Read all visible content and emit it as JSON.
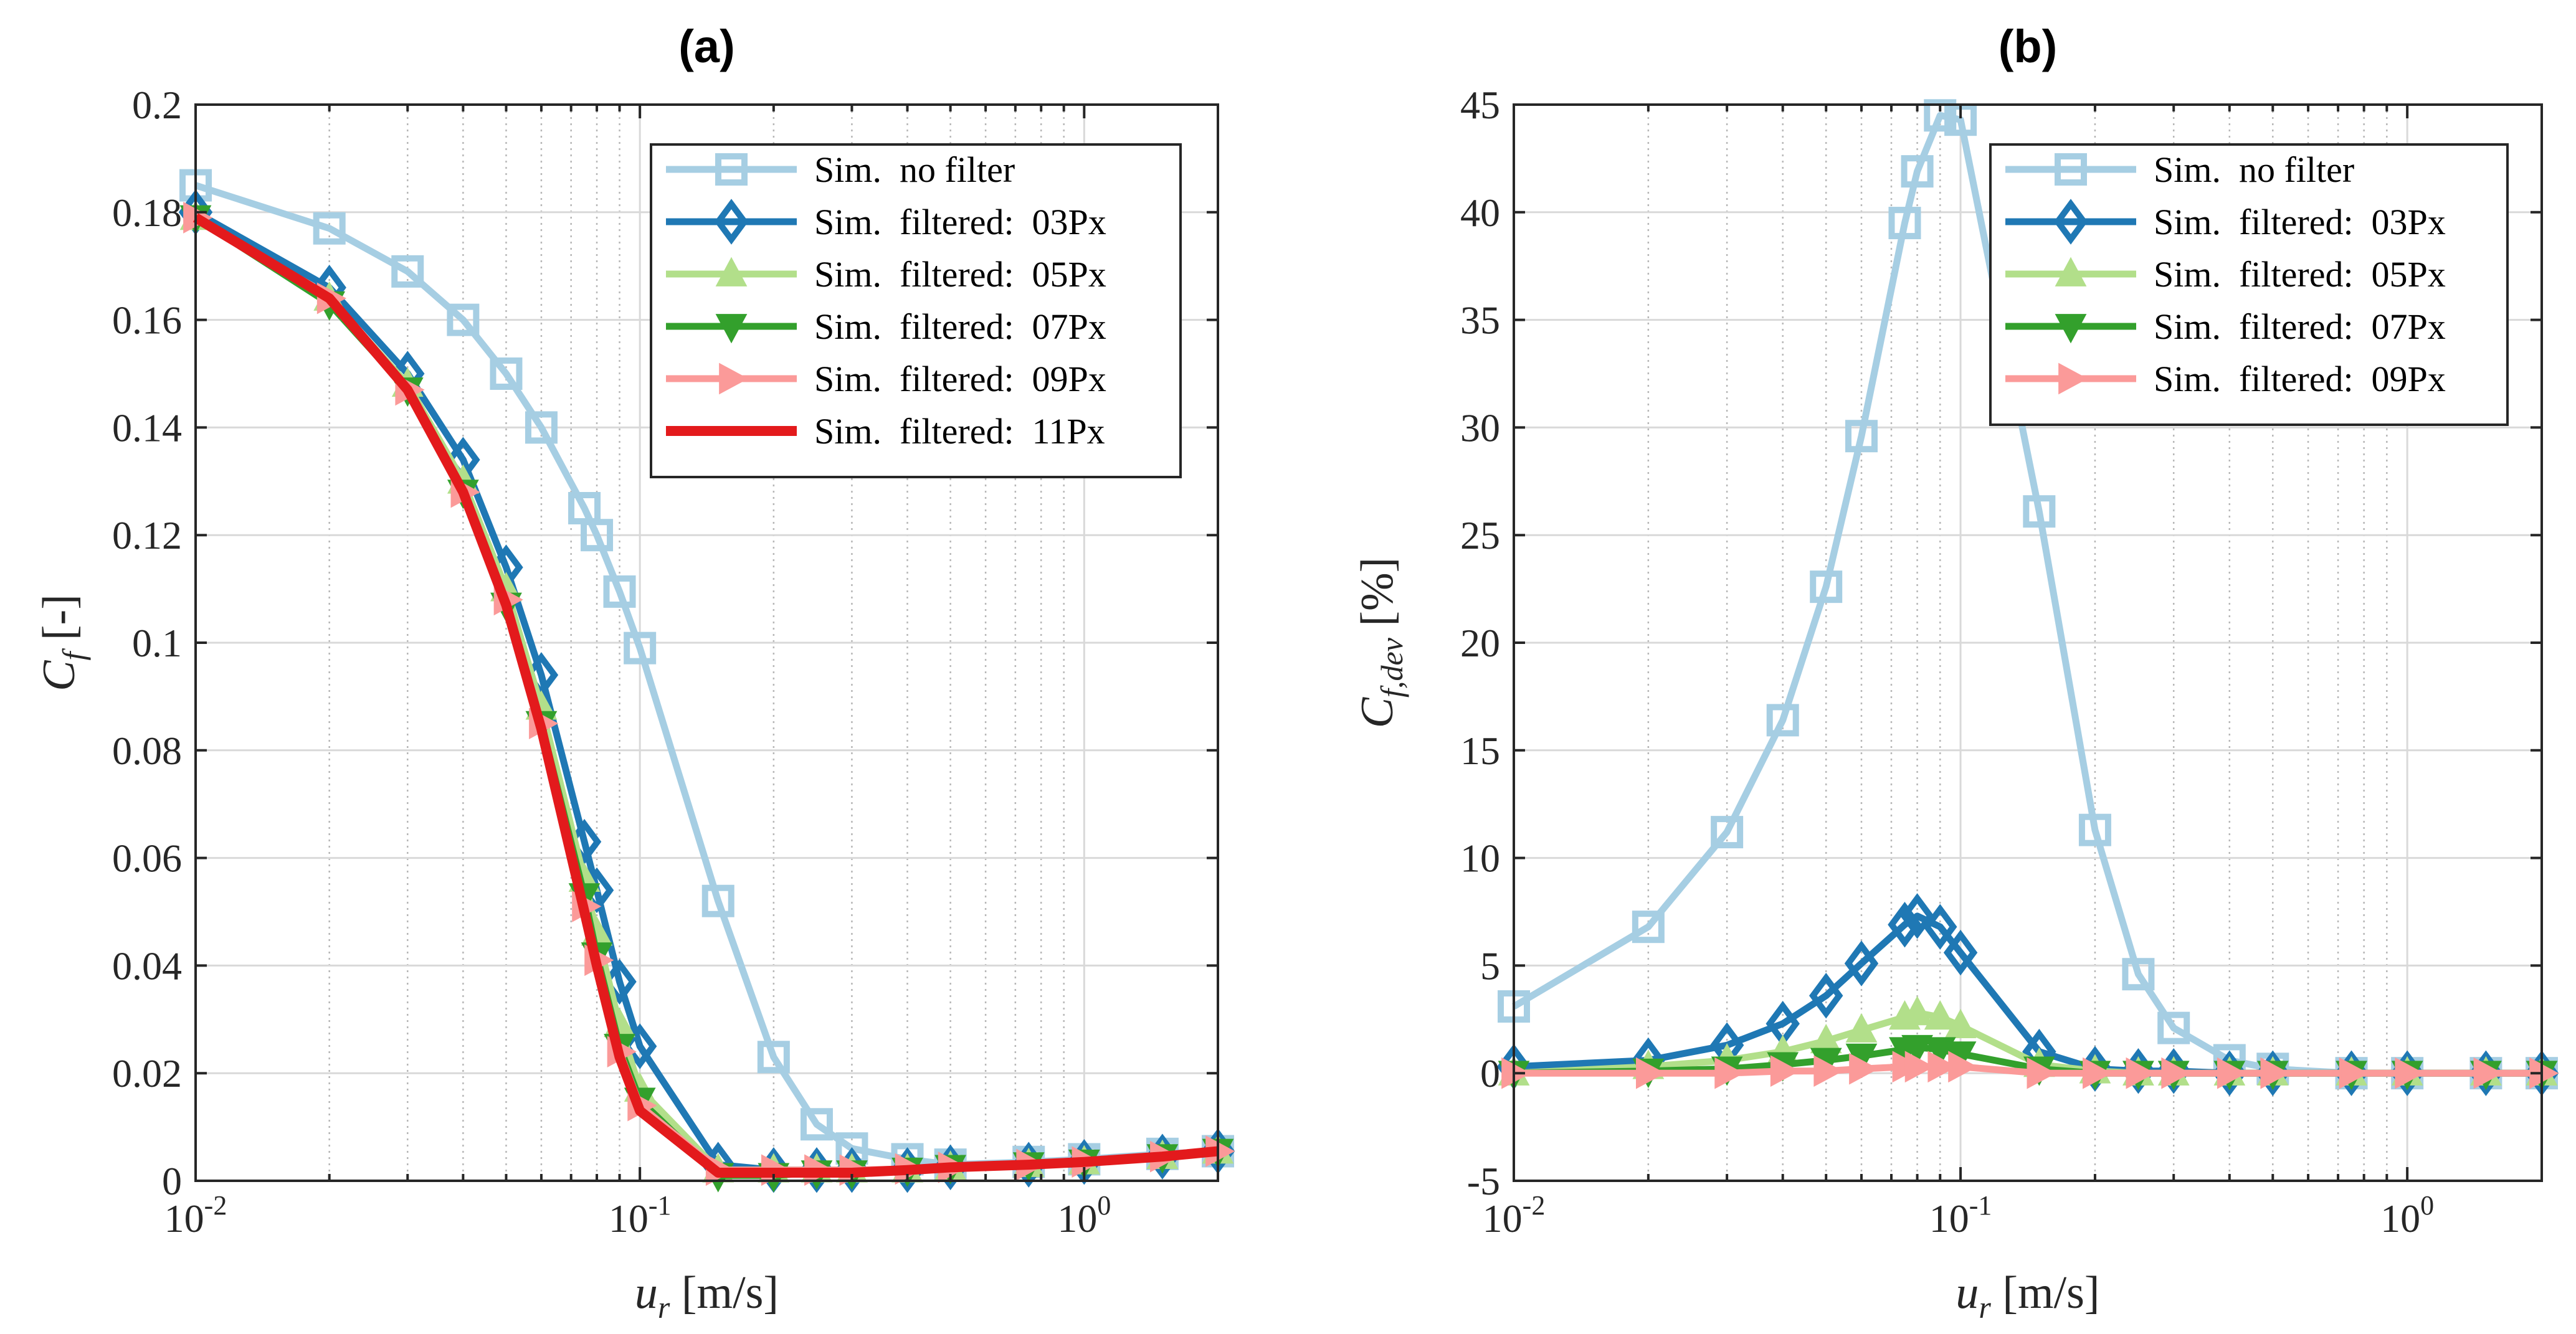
{
  "chart_data": [
    {
      "type": "line",
      "title": "(a)",
      "xlabel": {
        "var": "u",
        "sub": "r",
        "unit": " [m/s]"
      },
      "ylabel": {
        "var": "C",
        "sub": "f",
        "unit": " [-]"
      },
      "xscale": "log",
      "xlim": [
        0.01,
        2
      ],
      "ylim": [
        0,
        0.2
      ],
      "yticks": [
        0,
        0.02,
        0.04,
        0.06,
        0.08,
        0.1,
        0.12,
        0.14,
        0.16,
        0.18,
        0.2
      ],
      "ytick_labels": [
        "0",
        "0.02",
        "0.04",
        "0.06",
        "0.08",
        "0.1",
        "0.12",
        "0.14",
        "0.16",
        "0.18",
        "0.2"
      ],
      "xtick_labels": [
        {
          "base": "10",
          "exp": "-2",
          "value": 0.01
        },
        {
          "base": "10",
          "exp": "-1",
          "value": 0.1
        },
        {
          "base": "10",
          "exp": "0",
          "value": 1
        }
      ],
      "grid": true,
      "legend_position": "top-right",
      "x": [
        0.01,
        0.02,
        0.03,
        0.04,
        0.05,
        0.06,
        0.075,
        0.08,
        0.09,
        0.1,
        0.15,
        0.2,
        0.25,
        0.3,
        0.4,
        0.5,
        0.75,
        1,
        1.5,
        2
      ],
      "series": [
        {
          "name": "Sim.  no filter",
          "color": "#a6cee3",
          "marker": "square",
          "values": [
            0.185,
            0.177,
            0.169,
            0.16,
            0.15,
            0.14,
            0.125,
            0.12,
            0.1095,
            0.099,
            0.052,
            0.023,
            0.0105,
            0.006,
            0.004,
            0.003,
            0.0035,
            0.004,
            0.005,
            0.0055
          ]
        },
        {
          "name": "Sim.  filtered:  03Px",
          "color": "#1f78b4",
          "marker": "diamond",
          "values": [
            0.18,
            0.166,
            0.15,
            0.134,
            0.114,
            0.094,
            0.063,
            0.054,
            0.037,
            0.025,
            0.003,
            0.002,
            0.002,
            0.002,
            0.002,
            0.0025,
            0.003,
            0.0035,
            0.0045,
            0.0055
          ]
        },
        {
          "name": "Sim.  filtered:  05Px",
          "color": "#b2df8a",
          "marker": "triangle-up",
          "values": [
            0.179,
            0.164,
            0.148,
            0.13,
            0.11,
            0.088,
            0.056,
            0.046,
            0.029,
            0.017,
            0.002,
            0.002,
            0.002,
            0.002,
            0.002,
            0.0025,
            0.003,
            0.0035,
            0.0045,
            0.0055
          ]
        },
        {
          "name": "Sim.  filtered:  07Px",
          "color": "#33a02c",
          "marker": "triangle-down",
          "values": [
            0.179,
            0.163,
            0.147,
            0.128,
            0.107,
            0.085,
            0.053,
            0.042,
            0.025,
            0.015,
            0.001,
            0.001,
            0.0015,
            0.0015,
            0.002,
            0.0025,
            0.003,
            0.0035,
            0.0045,
            0.0055
          ]
        },
        {
          "name": "Sim.  filtered:  09Px",
          "color": "#fb9a99",
          "marker": "triangle-right",
          "values": [
            0.179,
            0.164,
            0.147,
            0.128,
            0.108,
            0.085,
            0.051,
            0.041,
            0.024,
            0.014,
            0.002,
            0.002,
            0.002,
            0.002,
            0.0022,
            0.0025,
            0.003,
            0.0035,
            0.0045,
            0.0055
          ]
        },
        {
          "name": "Sim.  filtered:  11Px",
          "color": "#e31a1c",
          "marker": "none",
          "values": [
            0.179,
            0.164,
            0.147,
            0.128,
            0.107,
            0.084,
            0.05,
            0.04,
            0.023,
            0.013,
            0.0015,
            0.0015,
            0.0015,
            0.0015,
            0.002,
            0.0025,
            0.003,
            0.0035,
            0.0045,
            0.0055
          ]
        }
      ]
    },
    {
      "type": "line",
      "title": "(b)",
      "xlabel": {
        "var": "u",
        "sub": "r",
        "unit": " [m/s]"
      },
      "ylabel": {
        "var": "C",
        "sub": "f,dev",
        "unit": " [%]"
      },
      "xscale": "log",
      "xlim": [
        0.01,
        2
      ],
      "ylim": [
        -5,
        45
      ],
      "yticks": [
        -5,
        0,
        5,
        10,
        15,
        20,
        25,
        30,
        35,
        40,
        45
      ],
      "ytick_labels": [
        "-5",
        "0",
        "5",
        "10",
        "15",
        "20",
        "25",
        "30",
        "35",
        "40",
        "45"
      ],
      "xtick_labels": [
        {
          "base": "10",
          "exp": "-2",
          "value": 0.01
        },
        {
          "base": "10",
          "exp": "-1",
          "value": 0.1
        },
        {
          "base": "10",
          "exp": "0",
          "value": 1
        }
      ],
      "grid": true,
      "legend_position": "top-right",
      "x": [
        0.01,
        0.02,
        0.03,
        0.04,
        0.05,
        0.06,
        0.075,
        0.08,
        0.09,
        0.1,
        0.15,
        0.2,
        0.25,
        0.3,
        0.4,
        0.5,
        0.75,
        1,
        1.5,
        2
      ],
      "series": [
        {
          "name": "Sim.  no filter",
          "color": "#a6cee3",
          "marker": "square",
          "values": [
            3.1,
            6.8,
            11.2,
            16.4,
            22.6,
            29.6,
            39.5,
            41.9,
            44.5,
            44.3,
            26.1,
            11.3,
            4.6,
            2.1,
            0.6,
            0.2,
            0,
            0,
            0,
            0
          ]
        },
        {
          "name": "Sim.  filtered:  03Px",
          "color": "#1f78b4",
          "marker": "diamond",
          "values": [
            0.3,
            0.6,
            1.3,
            2.3,
            3.6,
            5.1,
            6.9,
            7.3,
            6.8,
            5.6,
            1.0,
            0.2,
            0.1,
            0.1,
            0,
            0,
            0,
            0,
            0,
            0
          ]
        },
        {
          "name": "Sim.  filtered:  05Px",
          "color": "#b2df8a",
          "marker": "triangle-up",
          "values": [
            0,
            0.3,
            0.6,
            1.0,
            1.5,
            2.0,
            2.6,
            2.8,
            2.6,
            2.2,
            0.4,
            0.1,
            0,
            0,
            0,
            0,
            0,
            0,
            0,
            0
          ]
        },
        {
          "name": "Sim.  filtered:  07Px",
          "color": "#33a02c",
          "marker": "triangle-down",
          "values": [
            0,
            0.1,
            0.2,
            0.4,
            0.6,
            0.8,
            1.1,
            1.2,
            1.1,
            0.9,
            0.2,
            0,
            0,
            0,
            0,
            0,
            0,
            0,
            0,
            0
          ]
        },
        {
          "name": "Sim.  filtered:  09Px",
          "color": "#fb9a99",
          "marker": "triangle-right",
          "values": [
            0,
            0,
            0,
            0.1,
            0.1,
            0.2,
            0.3,
            0.3,
            0.3,
            0.3,
            0,
            0,
            0,
            0,
            0,
            0,
            0,
            0,
            0,
            0
          ]
        }
      ]
    }
  ]
}
